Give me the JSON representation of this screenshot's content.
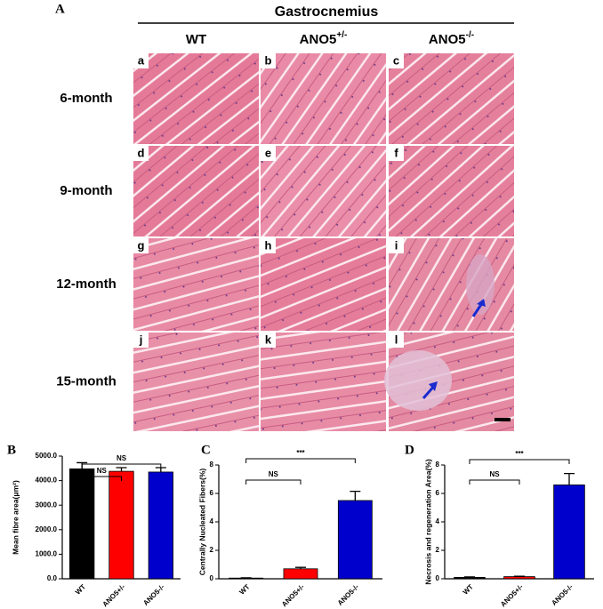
{
  "figure": {
    "panel_label": "A",
    "muscle": "Gastrocnemius",
    "columns": [
      {
        "text": "WT"
      },
      {
        "text": "ANO5",
        "sup": "+/-"
      },
      {
        "text": "ANO5",
        "sup": "-/-"
      }
    ],
    "rows": [
      "6-month",
      "9-month",
      "12-month",
      "15-month"
    ],
    "tiles": [
      "a",
      "b",
      "c",
      "d",
      "e",
      "f",
      "g",
      "h",
      "i",
      "j",
      "k",
      "l"
    ]
  },
  "chart_data": [
    {
      "type": "bar",
      "panel_label": "B",
      "ylabel": "Mean fibre area(μm²)",
      "categories": [
        "WT",
        "ANO5+/-",
        "ANO5-/-"
      ],
      "values": [
        4480,
        4380,
        4350
      ],
      "errors": [
        250,
        150,
        180
      ],
      "colors": [
        "#000000",
        "#ff0000",
        "#0000cc"
      ],
      "ylim": [
        0,
        5000
      ],
      "yticks": [
        {
          "value": 0,
          "label": "0.0"
        },
        {
          "value": 1000,
          "label": "1000.0"
        },
        {
          "value": 2000,
          "label": "2000.0"
        },
        {
          "value": 3000,
          "label": "3000.0"
        },
        {
          "value": 4000,
          "label": "4000.0"
        },
        {
          "value": 5000,
          "label": "5000.0"
        }
      ],
      "comparisons": [
        {
          "label": "NS",
          "between": [
            "WT",
            "ANO5+/-"
          ]
        },
        {
          "label": "NS",
          "between": [
            "WT",
            "ANO5-/-"
          ]
        }
      ]
    },
    {
      "type": "bar",
      "panel_label": "C",
      "ylabel": "Centrally Nucleated Fibers(%)",
      "categories": [
        "WT",
        "ANO5+/-",
        "ANO5-/-"
      ],
      "values": [
        0.05,
        0.7,
        5.5
      ],
      "errors": [
        0.02,
        0.1,
        0.65
      ],
      "colors": [
        "#000000",
        "#ff0000",
        "#0000cc"
      ],
      "ylim": [
        0,
        8
      ],
      "yticks": [
        0,
        2,
        4,
        6,
        8
      ],
      "comparisons": [
        {
          "label": "NS",
          "between": [
            "WT",
            "ANO5+/-"
          ]
        },
        {
          "label": "***",
          "between": [
            "WT",
            "ANO5-/-"
          ]
        }
      ]
    },
    {
      "type": "bar",
      "panel_label": "D",
      "ylabel": "Necrosis and regeneration Area(%)",
      "categories": [
        "WT",
        "ANO5+/-",
        "ANO5-/-"
      ],
      "values": [
        0.1,
        0.15,
        6.6
      ],
      "errors": [
        0.03,
        0.03,
        0.8
      ],
      "colors": [
        "#000000",
        "#ff0000",
        "#0000cc"
      ],
      "ylim": [
        0,
        8
      ],
      "yticks": [
        0,
        2,
        4,
        6,
        8
      ],
      "comparisons": [
        {
          "label": "NS",
          "between": [
            "WT",
            "ANO5+/-"
          ]
        },
        {
          "label": "***",
          "between": [
            "WT",
            "ANO5-/-"
          ]
        }
      ]
    }
  ]
}
